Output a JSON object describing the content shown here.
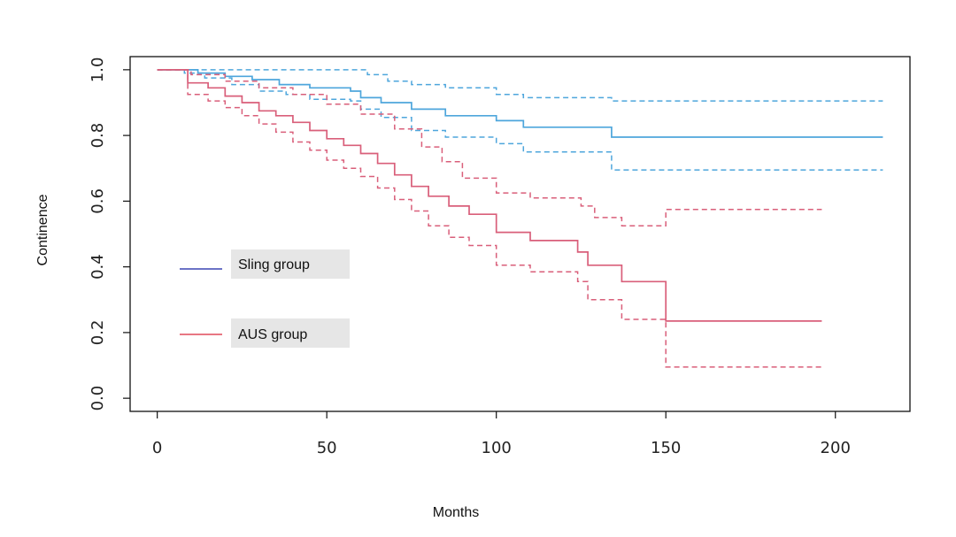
{
  "chart_data": {
    "type": "line",
    "title": "",
    "xlabel": "Months",
    "ylabel": "Continence",
    "xlim": [
      -8,
      222
    ],
    "ylim": [
      -0.04,
      1.04
    ],
    "x_ticks": [
      0,
      50,
      100,
      150,
      200
    ],
    "y_ticks": [
      0.0,
      0.2,
      0.4,
      0.6,
      0.8,
      1.0
    ],
    "x_tick_labels": [
      "0",
      "50",
      "100",
      "150",
      "200"
    ],
    "y_tick_labels": [
      "0.0",
      "0.2",
      "0.4",
      "0.6",
      "0.8",
      "1.0"
    ],
    "grid": false,
    "legend_position": "left",
    "series": [
      {
        "key": "sling",
        "name": "Sling group",
        "color": "#4ea6dc",
        "legend_color": "#3b45b3",
        "estimate": [
          [
            0,
            1.0
          ],
          [
            12,
            0.99
          ],
          [
            20,
            0.98
          ],
          [
            28,
            0.97
          ],
          [
            36,
            0.955
          ],
          [
            45,
            0.945
          ],
          [
            57,
            0.935
          ],
          [
            60,
            0.915
          ],
          [
            66,
            0.9
          ],
          [
            75,
            0.88
          ],
          [
            85,
            0.86
          ],
          [
            100,
            0.845
          ],
          [
            108,
            0.825
          ],
          [
            134,
            0.795
          ],
          [
            214,
            0.795
          ]
        ],
        "upper": [
          [
            0,
            1.0
          ],
          [
            58,
            1.0
          ],
          [
            62,
            0.985
          ],
          [
            68,
            0.965
          ],
          [
            75,
            0.955
          ],
          [
            85,
            0.945
          ],
          [
            100,
            0.925
          ],
          [
            108,
            0.915
          ],
          [
            134,
            0.905
          ],
          [
            214,
            0.905
          ]
        ],
        "lower": [
          [
            0,
            1.0
          ],
          [
            8,
            0.99
          ],
          [
            14,
            0.975
          ],
          [
            22,
            0.955
          ],
          [
            30,
            0.935
          ],
          [
            38,
            0.925
          ],
          [
            45,
            0.91
          ],
          [
            57,
            0.905
          ],
          [
            60,
            0.88
          ],
          [
            66,
            0.855
          ],
          [
            75,
            0.815
          ],
          [
            85,
            0.795
          ],
          [
            100,
            0.775
          ],
          [
            108,
            0.75
          ],
          [
            134,
            0.695
          ],
          [
            214,
            0.695
          ]
        ]
      },
      {
        "key": "aus",
        "name": "AUS group",
        "color": "#d95f7a",
        "legend_color": "#e04a5a",
        "estimate": [
          [
            0,
            1.0
          ],
          [
            9,
            0.96
          ],
          [
            15,
            0.945
          ],
          [
            20,
            0.92
          ],
          [
            25,
            0.9
          ],
          [
            30,
            0.875
          ],
          [
            35,
            0.86
          ],
          [
            40,
            0.84
          ],
          [
            45,
            0.815
          ],
          [
            50,
            0.79
          ],
          [
            55,
            0.77
          ],
          [
            60,
            0.745
          ],
          [
            65,
            0.715
          ],
          [
            70,
            0.68
          ],
          [
            75,
            0.645
          ],
          [
            80,
            0.615
          ],
          [
            86,
            0.585
          ],
          [
            92,
            0.56
          ],
          [
            100,
            0.505
          ],
          [
            110,
            0.48
          ],
          [
            124,
            0.445
          ],
          [
            127,
            0.405
          ],
          [
            137,
            0.355
          ],
          [
            150,
            0.235
          ],
          [
            196,
            0.235
          ]
        ],
        "upper": [
          [
            0,
            1.0
          ],
          [
            10,
            0.985
          ],
          [
            20,
            0.965
          ],
          [
            30,
            0.945
          ],
          [
            40,
            0.925
          ],
          [
            50,
            0.895
          ],
          [
            60,
            0.865
          ],
          [
            70,
            0.82
          ],
          [
            78,
            0.765
          ],
          [
            84,
            0.72
          ],
          [
            90,
            0.67
          ],
          [
            100,
            0.625
          ],
          [
            110,
            0.61
          ],
          [
            125,
            0.585
          ],
          [
            129,
            0.55
          ],
          [
            137,
            0.525
          ],
          [
            150,
            0.575
          ],
          [
            196,
            0.575
          ]
        ],
        "lower": [
          [
            0,
            1.0
          ],
          [
            9,
            0.925
          ],
          [
            15,
            0.905
          ],
          [
            20,
            0.885
          ],
          [
            25,
            0.86
          ],
          [
            30,
            0.835
          ],
          [
            35,
            0.81
          ],
          [
            40,
            0.78
          ],
          [
            45,
            0.755
          ],
          [
            50,
            0.725
          ],
          [
            55,
            0.7
          ],
          [
            60,
            0.675
          ],
          [
            65,
            0.64
          ],
          [
            70,
            0.605
          ],
          [
            75,
            0.57
          ],
          [
            80,
            0.525
          ],
          [
            86,
            0.49
          ],
          [
            92,
            0.465
          ],
          [
            100,
            0.405
          ],
          [
            110,
            0.385
          ],
          [
            124,
            0.355
          ],
          [
            127,
            0.3
          ],
          [
            137,
            0.24
          ],
          [
            150,
            0.095
          ],
          [
            196,
            0.095
          ]
        ]
      }
    ]
  }
}
